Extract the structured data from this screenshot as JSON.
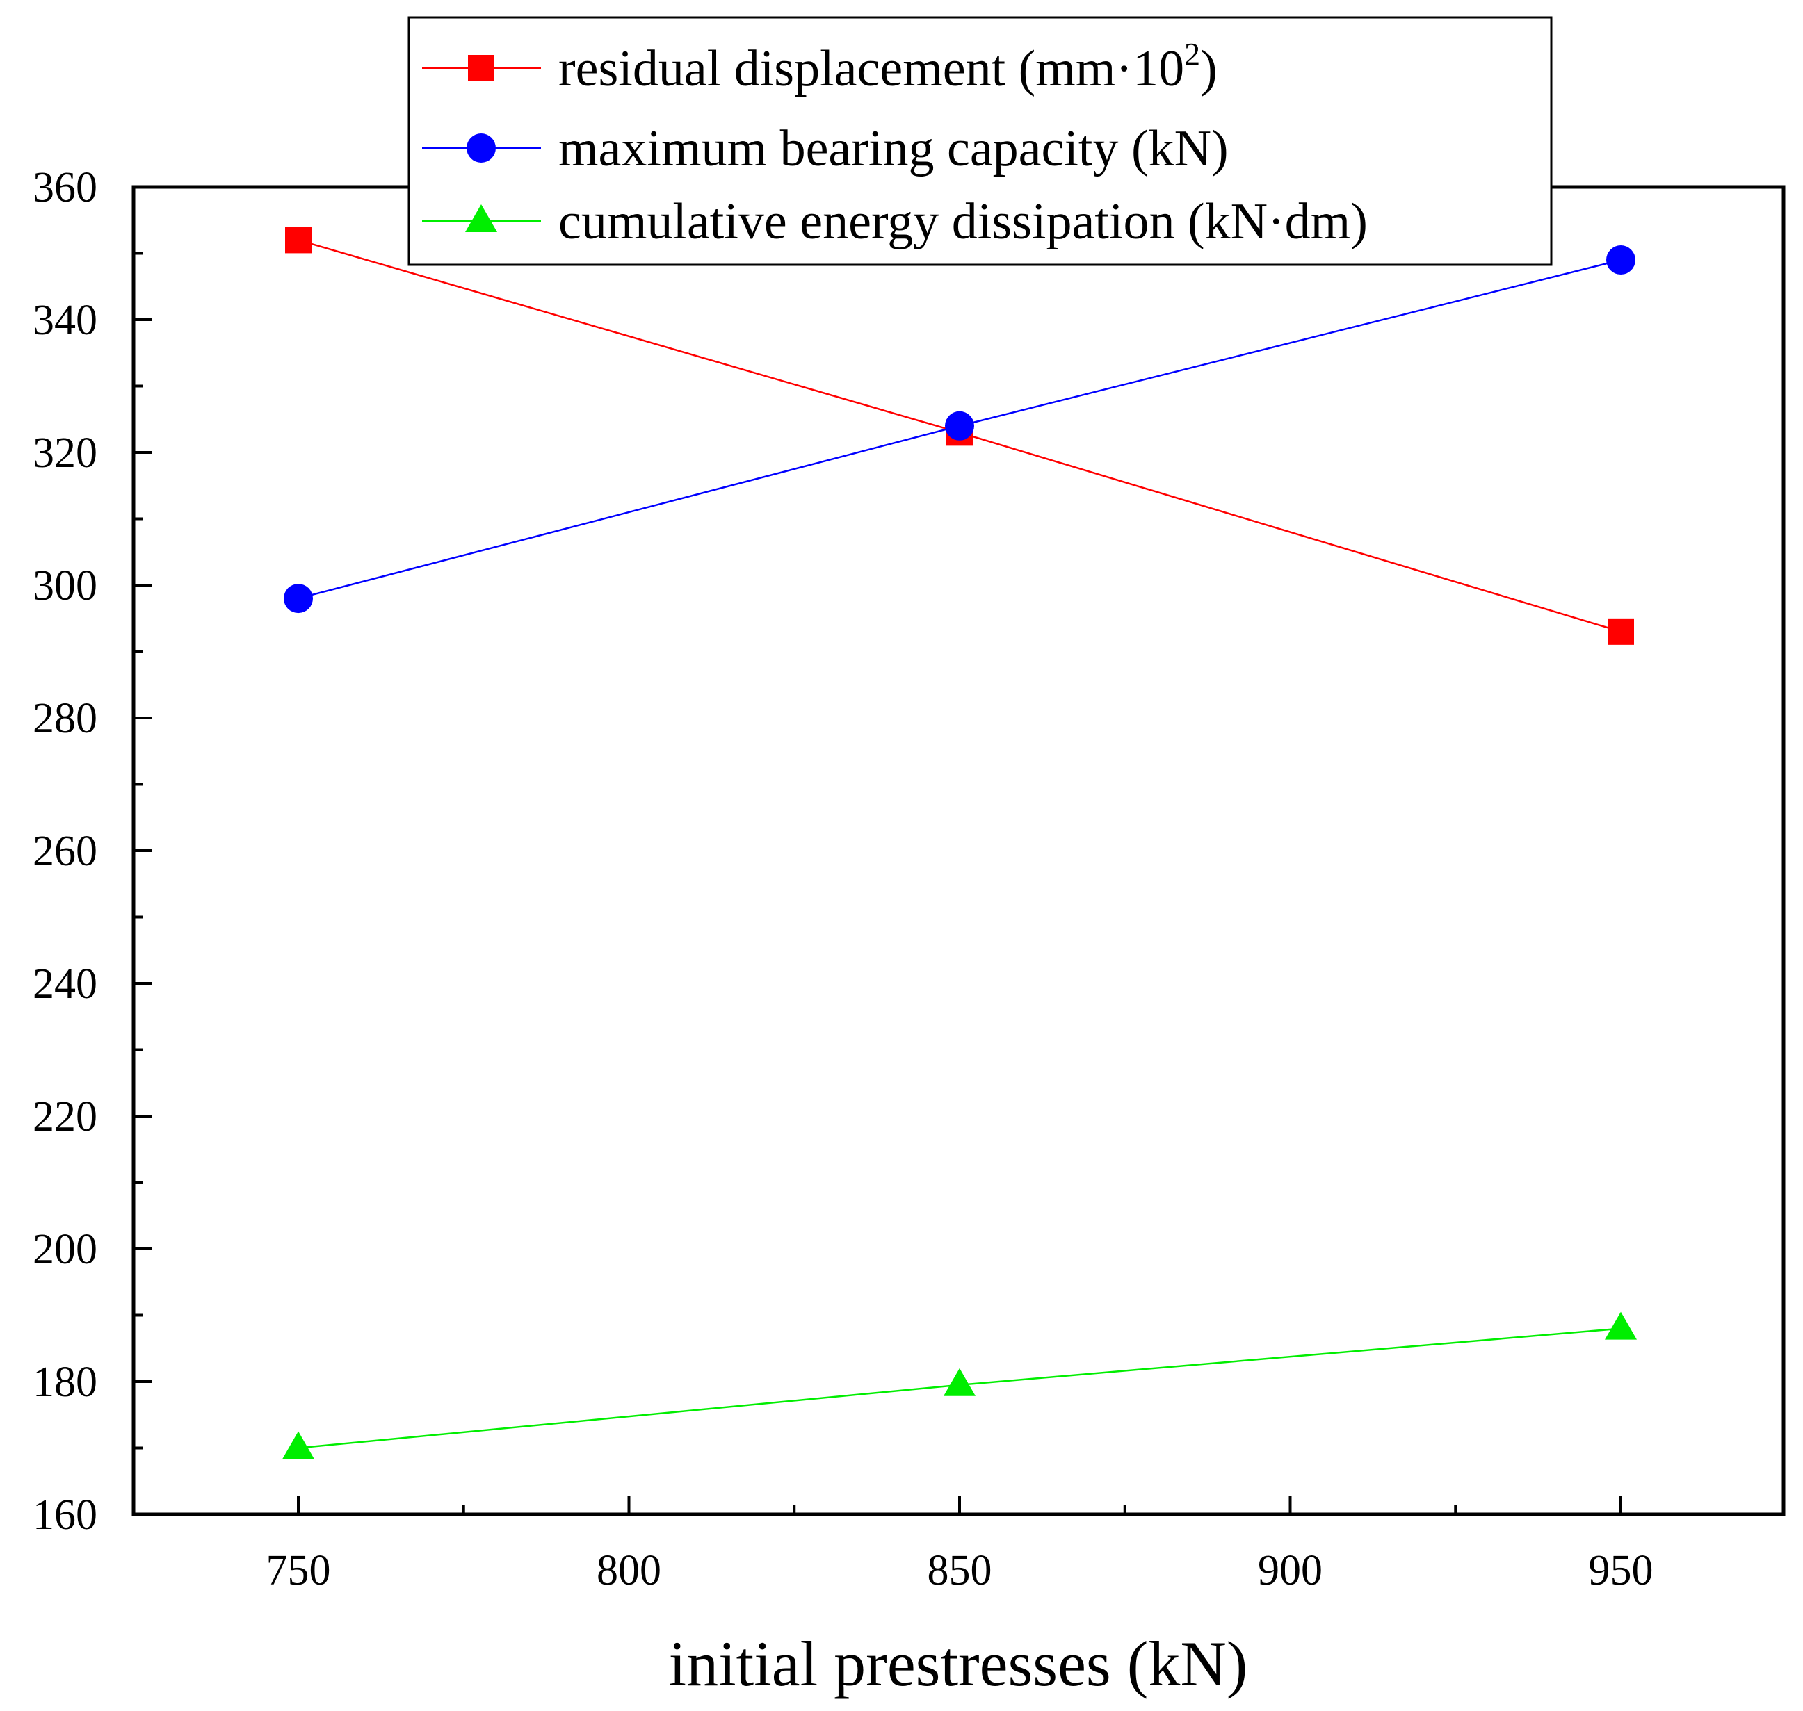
{
  "chart_data": {
    "type": "line",
    "title": "",
    "xlabel": "initial prestresses (kN)",
    "ylabel": "",
    "x": [
      750,
      850,
      950
    ],
    "xlim": [
      725,
      975
    ],
    "ylim": [
      160,
      360
    ],
    "xticks": [
      750,
      800,
      850,
      900,
      950
    ],
    "xtick_labels": [
      "750",
      "800",
      "850",
      "900",
      "950"
    ],
    "yticks": [
      160,
      180,
      200,
      220,
      240,
      260,
      280,
      300,
      320,
      340,
      360
    ],
    "ytick_labels": [
      "160",
      "180",
      "200",
      "220",
      "240",
      "260",
      "280",
      "300",
      "320",
      "340",
      "360"
    ],
    "grid": false,
    "legend_position": "top-center",
    "series": [
      {
        "name": "residual displacement (mm·10",
        "name_sup": "2",
        "name_tail": ")",
        "marker": "square",
        "color": "#ff0000",
        "values": [
          352,
          323,
          293
        ]
      },
      {
        "name": "maximum bearing capacity (kN)",
        "marker": "circle",
        "color": "#0000ff",
        "values": [
          298,
          324,
          349
        ]
      },
      {
        "name": "cumulative energy dissipation (kN·dm)",
        "marker": "triangle",
        "color": "#00ee00",
        "values": [
          170,
          179.5,
          188
        ]
      }
    ]
  }
}
